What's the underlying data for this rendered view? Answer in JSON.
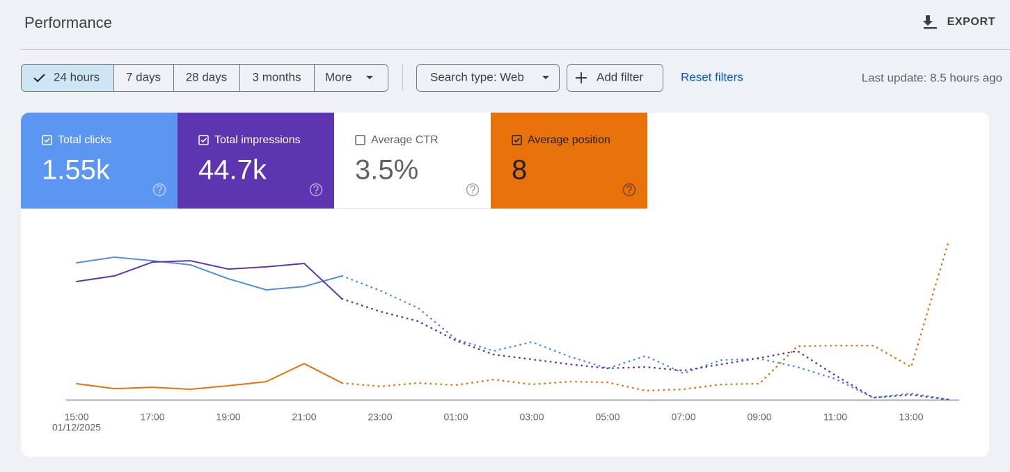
{
  "header": {
    "title": "Performance",
    "export": "EXPORT"
  },
  "date_range": {
    "options": [
      "24 hours",
      "7 days",
      "28 days",
      "3 months",
      "More"
    ],
    "selected": 0
  },
  "filters": {
    "search_type": "Search type: Web",
    "add_filter": "Add filter",
    "reset": "Reset filters"
  },
  "last_update": "Last update: 8.5 hours ago",
  "metrics": [
    {
      "label": "Total clicks",
      "value": "1.55k",
      "checked": true,
      "color": "#5b96f2",
      "text_color": "#ffffff"
    },
    {
      "label": "Total impressions",
      "value": "44.7k",
      "checked": true,
      "color": "#5e35b1",
      "text_color": "#ffffff"
    },
    {
      "label": "Average CTR",
      "value": "3.5%",
      "checked": false,
      "color": "#ffffff",
      "text_color": "#5f6368"
    },
    {
      "label": "Average position",
      "value": "8",
      "checked": true,
      "color": "#e8710a",
      "text_color": "#202124"
    }
  ],
  "chart_data": {
    "type": "line",
    "categories": [
      "15:00",
      null,
      "17:00",
      null,
      "19:00",
      null,
      "21:00",
      null,
      "23:00",
      null,
      "01:00",
      null,
      "03:00",
      null,
      "05:00",
      null,
      "07:00",
      null,
      "09:00",
      null,
      "11:00",
      null,
      "13:00",
      null
    ],
    "x_sublabel": "01/12/2025",
    "ylim": [
      0,
      100
    ],
    "dotted_from": 7,
    "series": [
      {
        "color": "#4a8fe7",
        "values": [
          80.4,
          83.7,
          81.6,
          79.2,
          71.0,
          64.5,
          66.5,
          72.7,
          64.1,
          53.9,
          35.5,
          28.6,
          33.9,
          25.3,
          18.4,
          25.7,
          15.5,
          23.3,
          24.1,
          19.2,
          12.2,
          1.2,
          3.7,
          0
        ]
      },
      {
        "color": "#5e35b1",
        "values": [
          69.4,
          72.7,
          80.8,
          81.6,
          76.7,
          78.0,
          80.0,
          59.2,
          51.8,
          46.1,
          34.7,
          26.5,
          23.7,
          20.8,
          18.4,
          19.2,
          17.1,
          20.8,
          24.5,
          28.6,
          14.3,
          1.2,
          2.9,
          0
        ]
      },
      {
        "color": "#e8710a",
        "values": [
          9.4,
          6.5,
          7.3,
          6.1,
          8.2,
          10.6,
          21.2,
          9.8,
          7.8,
          9.8,
          8.6,
          11.8,
          9.0,
          10.6,
          10.2,
          5.3,
          6.1,
          9.0,
          9.4,
          31.4,
          31.8,
          31.8,
          19.2,
          93.9
        ]
      }
    ]
  }
}
